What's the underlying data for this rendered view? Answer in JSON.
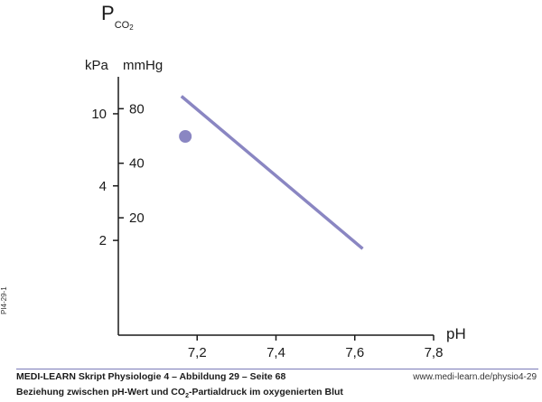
{
  "chart_data": {
    "type": "line",
    "title": "",
    "y_title_main": "P",
    "y_title_sub": "CO",
    "y_title_sub2": "2",
    "y_unit_left": "kPa",
    "y_unit_right": "mmHg",
    "xlabel": "pH",
    "x_ticks": [
      7.2,
      7.4,
      7.6,
      7.8
    ],
    "x_tick_labels": [
      "7,2",
      "7,4",
      "7,6",
      "7,8"
    ],
    "xlim": [
      7.0,
      7.8
    ],
    "y_scale": "log",
    "ylim_kpa": [
      0.6,
      16
    ],
    "y_ticks_kpa": [
      {
        "value": 2,
        "label": "2"
      },
      {
        "value": 4,
        "label": "4"
      },
      {
        "value": 10,
        "label": "10"
      }
    ],
    "y_ticks_mmhg": [
      {
        "value": 20,
        "label": "20"
      },
      {
        "value": 40,
        "label": "40"
      },
      {
        "value": 80,
        "label": "80"
      }
    ],
    "series": [
      {
        "x": [
          7.16,
          7.62
        ],
        "y_kpa": [
          12.5,
          1.8
        ],
        "color": "#8a86c2"
      }
    ],
    "points": [
      {
        "x": 7.17,
        "y_kpa": 7.5,
        "color": "#8a86c2"
      }
    ],
    "grid": false,
    "legend": "none"
  },
  "footer": {
    "left": "MEDI-LEARN Skript Physiologie 4 – Abbildung 29 – Seite 68",
    "right": "www.medi-learn.de/physio4-29",
    "caption_pre": "Beziehung zwischen pH-Wert und CO",
    "caption_sub": "2",
    "caption_post": "-Partialdruck im oxygenierten Blut"
  },
  "side_code": "PI4-29-1"
}
